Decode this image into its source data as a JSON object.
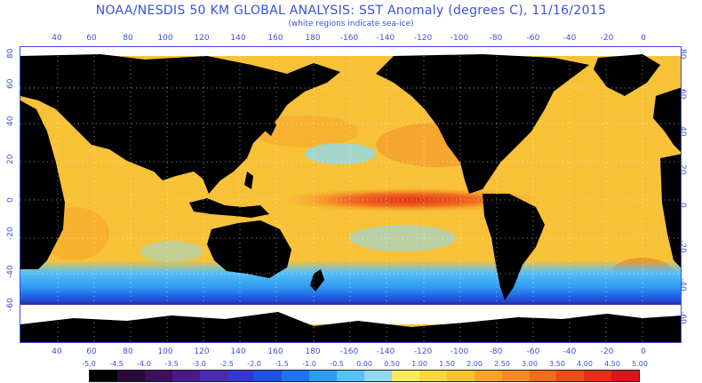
{
  "title": "NOAA/NESDIS 50 KM GLOBAL ANALYSIS: SST Anomaly (degrees C), 11/16/2015",
  "subtitle": "(white regions indicate sea-ice)",
  "lon_ticks": [
    "40",
    "60",
    "80",
    "100",
    "120",
    "140",
    "160",
    "180",
    "-160",
    "-140",
    "-120",
    "-100",
    "-80",
    "-60",
    "-40",
    "-20",
    "0"
  ],
  "lat_ticks_left": [
    "60",
    "40",
    "20",
    "0",
    "-20",
    "-40",
    "-60"
  ],
  "lat_ticks_right": [
    "60",
    "40",
    "20",
    "0",
    "-20",
    "-40",
    "-60"
  ],
  "lat_top_left": "80",
  "lat_top_right": "80",
  "color_scale": {
    "labels": [
      "-5.0",
      "-4.5",
      "-4.0",
      "-3.5",
      "-3.0",
      "-2.5",
      "-2.0",
      "-1.5",
      "-1.0",
      "-0.5",
      "0.00",
      "0.50",
      "1.00",
      "1.50",
      "2.00",
      "2.50",
      "3.00",
      "3.50",
      "4.00",
      "4.50",
      "5.00"
    ],
    "colors": [
      "#000000",
      "#2a0a3a",
      "#3d0f5e",
      "#4b1a8a",
      "#4a2bb0",
      "#3438d0",
      "#2050e0",
      "#1f74ef",
      "#2f9bf2",
      "#57c0f5",
      "#8fd9ee",
      "#f4ec5c",
      "#f7d640",
      "#f7c230",
      "#f6a52a",
      "#f48a25",
      "#f06c20",
      "#ea4e1c",
      "#e23019",
      "#d41a18"
    ]
  },
  "colors": {
    "ocean_base": "#f7c230",
    "warm_anomaly": "#f06c20",
    "cold_anomaly": "#2f9bf2",
    "land": "#000000",
    "sea_ice": "#ffffff",
    "text_axis": "#3a52d6"
  }
}
